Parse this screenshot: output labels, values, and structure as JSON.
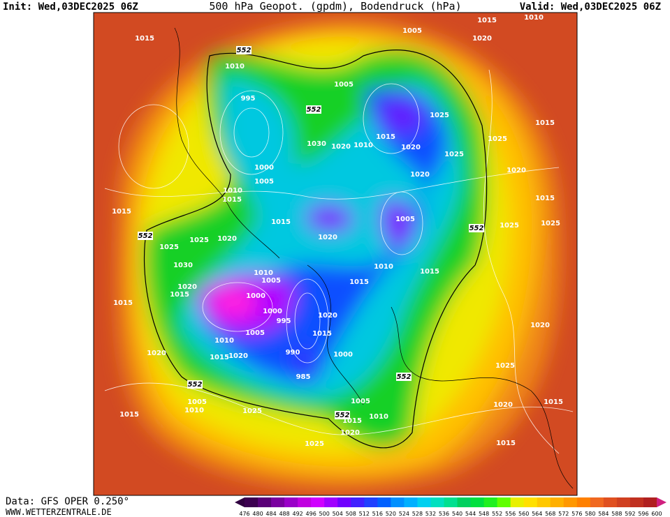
{
  "header": {
    "init": "Init: Wed,03DEC2025 06Z",
    "title": "500 hPa Geopot. (gpdm), Bodendruck (hPa)",
    "valid": "Valid: Wed,03DEC2025 06Z"
  },
  "map": {
    "isobar_labels": [
      1015,
      1010,
      995,
      1005,
      1005,
      1015,
      1010,
      1020,
      1025,
      1015,
      1010,
      1020,
      1030,
      1020,
      1025,
      1025,
      1015,
      1020,
      1020,
      1000,
      1005,
      1010,
      1015,
      1015,
      1015,
      1005,
      1015,
      1025,
      1025,
      1025,
      1025,
      1020,
      1020,
      1030,
      1010,
      1005,
      1010,
      1015,
      1015,
      1020,
      1015,
      1000,
      1015,
      1000,
      995,
      1020,
      1005,
      1015,
      1010,
      990,
      1020,
      1015,
      1020,
      1000,
      985,
      1020,
      1025,
      1005,
      1010,
      1025,
      1015,
      1005,
      1010,
      1015,
      1020,
      1025,
      1020,
      1015,
      1015
    ],
    "geopotential_labels": [
      552,
      552,
      552,
      552,
      552,
      552,
      552
    ]
  },
  "footer": {
    "data_source": "Data: GFS OPER 0.250°",
    "website": "WWW.WETTERZENTRALE.DE"
  },
  "colorbar": {
    "ticks": [
      476,
      480,
      484,
      488,
      492,
      496,
      500,
      504,
      508,
      512,
      516,
      520,
      524,
      528,
      532,
      536,
      540,
      544,
      548,
      552,
      556,
      560,
      564,
      568,
      572,
      576,
      580,
      584,
      588,
      592,
      596,
      600
    ],
    "colors": [
      "#3c0050",
      "#5a0078",
      "#7a00a0",
      "#9a00c8",
      "#c000e0",
      "#d000ff",
      "#a000ff",
      "#7000ff",
      "#4020ff",
      "#2040ff",
      "#0060ff",
      "#0090ff",
      "#00b0ff",
      "#00d0f0",
      "#00e0c0",
      "#00e090",
      "#00d060",
      "#00e040",
      "#20f020",
      "#60ff00",
      "#e8f000",
      "#ffe000",
      "#ffc800",
      "#ffb000",
      "#ff9800",
      "#ff8000",
      "#f06820",
      "#e05020",
      "#d04020",
      "#c03020",
      "#b02020"
    ]
  }
}
